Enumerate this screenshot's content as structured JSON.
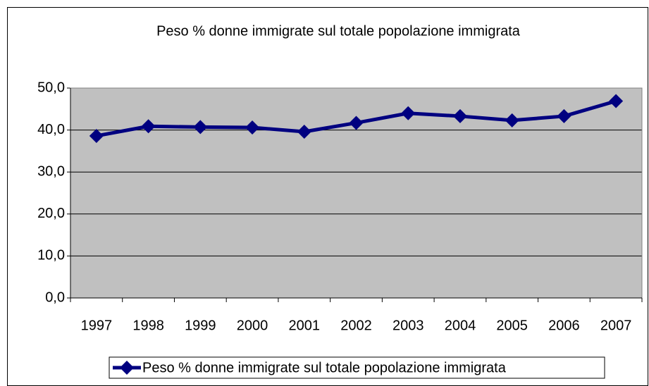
{
  "chart_data": {
    "type": "line",
    "title": "Peso % donne immigrate sul totale popolazione immigrata",
    "categories": [
      "1997",
      "1998",
      "1999",
      "2000",
      "2001",
      "2002",
      "2003",
      "2004",
      "2005",
      "2006",
      "2007"
    ],
    "series": [
      {
        "name": "Peso % donne immigrate sul totale popolazione immigrata",
        "color": "#000080",
        "values": [
          38.6,
          40.9,
          40.7,
          40.6,
          39.6,
          41.7,
          44.0,
          43.3,
          42.3,
          43.3,
          46.9
        ]
      }
    ],
    "ylim": [
      0,
      50
    ],
    "yticks": [
      {
        "value": 0,
        "label": "0,0"
      },
      {
        "value": 10,
        "label": "10,0"
      },
      {
        "value": 20,
        "label": "20,0"
      },
      {
        "value": 30,
        "label": "30,0"
      },
      {
        "value": 40,
        "label": "40,0"
      },
      {
        "value": 50,
        "label": "50,0"
      }
    ],
    "grid": true,
    "plot_background": "#c0c0c0",
    "legend": "bottom"
  }
}
